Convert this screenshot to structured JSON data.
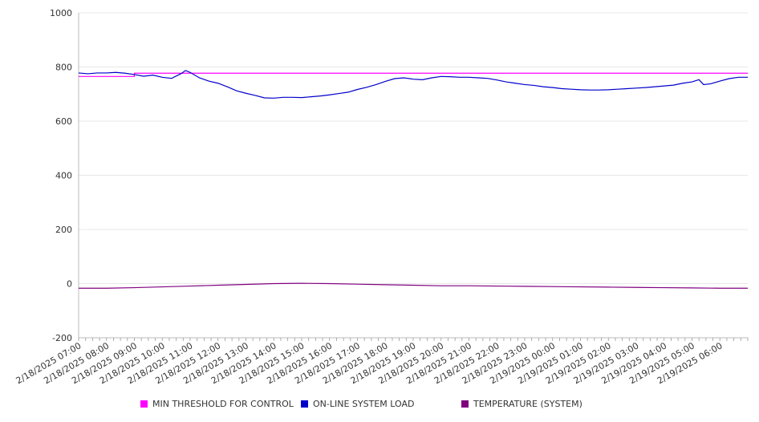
{
  "chart_data": {
    "type": "line",
    "ylim": [
      -200,
      1000
    ],
    "yticks": [
      -200,
      0,
      200,
      400,
      600,
      800,
      1000
    ],
    "x_tick_labels": [
      "2/18/2025 07:00",
      "2/18/2025 08:00",
      "2/18/2025 09:00",
      "2/18/2025 10:00",
      "2/18/2025 11:00",
      "2/18/2025 12:00",
      "2/18/2025 13:00",
      "2/18/2025 14:00",
      "2/18/2025 15:00",
      "2/18/2025 16:00",
      "2/18/2025 17:00",
      "2/18/2025 18:00",
      "2/18/2025 19:00",
      "2/18/2025 20:00",
      "2/18/2025 21:00",
      "2/18/2025 22:00",
      "2/18/2025 23:00",
      "2/19/2025 00:00",
      "2/19/2025 01:00",
      "2/19/2025 02:00",
      "2/19/2025 03:00",
      "2/19/2025 04:00",
      "2/19/2025 05:00",
      "2/19/2025 06:00"
    ],
    "x_range": [
      "2/18/2025 07:00",
      "2/19/2025 07:00"
    ],
    "grid": true,
    "legend_position": "bottom",
    "series": [
      {
        "name": "MIN THRESHOLD FOR CONTROL",
        "color": "#ff00ff",
        "points": [
          [
            "2/18/2025 07:00",
            765
          ],
          [
            "2/18/2025 09:00",
            765
          ],
          [
            "2/18/2025 09:00",
            777
          ],
          [
            "2/19/2025 07:00",
            777
          ]
        ]
      },
      {
        "name": "ON-LINE SYSTEM LOAD",
        "color": "#0000cc",
        "points": [
          [
            "2/18/2025 07:00",
            778
          ],
          [
            "2/18/2025 07:20",
            775
          ],
          [
            "2/18/2025 07:40",
            778
          ],
          [
            "2/18/2025 08:00",
            778
          ],
          [
            "2/18/2025 08:20",
            780
          ],
          [
            "2/18/2025 08:40",
            777
          ],
          [
            "2/18/2025 09:00",
            772
          ],
          [
            "2/18/2025 09:20",
            766
          ],
          [
            "2/18/2025 09:40",
            770
          ],
          [
            "2/18/2025 10:00",
            762
          ],
          [
            "2/18/2025 10:20",
            758
          ],
          [
            "2/18/2025 10:40",
            775
          ],
          [
            "2/18/2025 10:50",
            787
          ],
          [
            "2/18/2025 11:00",
            780
          ],
          [
            "2/18/2025 11:20",
            760
          ],
          [
            "2/18/2025 11:40",
            748
          ],
          [
            "2/18/2025 12:00",
            740
          ],
          [
            "2/18/2025 12:20",
            727
          ],
          [
            "2/18/2025 12:40",
            712
          ],
          [
            "2/18/2025 13:00",
            703
          ],
          [
            "2/18/2025 13:20",
            695
          ],
          [
            "2/18/2025 13:40",
            686
          ],
          [
            "2/18/2025 14:00",
            685
          ],
          [
            "2/18/2025 14:20",
            688
          ],
          [
            "2/18/2025 14:40",
            688
          ],
          [
            "2/18/2025 15:00",
            687
          ],
          [
            "2/18/2025 15:20",
            690
          ],
          [
            "2/18/2025 15:40",
            693
          ],
          [
            "2/18/2025 16:00",
            697
          ],
          [
            "2/18/2025 16:20",
            702
          ],
          [
            "2/18/2025 16:40",
            707
          ],
          [
            "2/18/2025 17:00",
            717
          ],
          [
            "2/18/2025 17:20",
            725
          ],
          [
            "2/18/2025 17:40",
            735
          ],
          [
            "2/18/2025 18:00",
            747
          ],
          [
            "2/18/2025 18:20",
            757
          ],
          [
            "2/18/2025 18:40",
            760
          ],
          [
            "2/18/2025 19:00",
            755
          ],
          [
            "2/18/2025 19:20",
            753
          ],
          [
            "2/18/2025 19:40",
            760
          ],
          [
            "2/18/2025 20:00",
            765
          ],
          [
            "2/18/2025 20:20",
            764
          ],
          [
            "2/18/2025 20:40",
            762
          ],
          [
            "2/18/2025 21:00",
            762
          ],
          [
            "2/18/2025 21:20",
            760
          ],
          [
            "2/18/2025 21:40",
            758
          ],
          [
            "2/18/2025 22:00",
            752
          ],
          [
            "2/18/2025 22:20",
            745
          ],
          [
            "2/18/2025 22:40",
            740
          ],
          [
            "2/18/2025 23:00",
            735
          ],
          [
            "2/18/2025 23:20",
            732
          ],
          [
            "2/18/2025 23:40",
            727
          ],
          [
            "2/19/2025 00:00",
            724
          ],
          [
            "2/19/2025 00:20",
            720
          ],
          [
            "2/19/2025 00:40",
            718
          ],
          [
            "2/19/2025 01:00",
            716
          ],
          [
            "2/19/2025 01:20",
            715
          ],
          [
            "2/19/2025 01:40",
            715
          ],
          [
            "2/19/2025 02:00",
            716
          ],
          [
            "2/19/2025 02:20",
            718
          ],
          [
            "2/19/2025 02:40",
            720
          ],
          [
            "2/19/2025 03:00",
            722
          ],
          [
            "2/19/2025 03:20",
            724
          ],
          [
            "2/19/2025 03:40",
            727
          ],
          [
            "2/19/2025 04:00",
            730
          ],
          [
            "2/19/2025 04:20",
            733
          ],
          [
            "2/19/2025 04:40",
            740
          ],
          [
            "2/19/2025 05:00",
            745
          ],
          [
            "2/19/2025 05:15",
            753
          ],
          [
            "2/19/2025 05:25",
            735
          ],
          [
            "2/19/2025 05:40",
            738
          ],
          [
            "2/19/2025 06:00",
            748
          ],
          [
            "2/19/2025 06:20",
            757
          ],
          [
            "2/19/2025 06:40",
            762
          ],
          [
            "2/19/2025 07:00",
            762
          ]
        ]
      },
      {
        "name": "TEMPERATURE (SYSTEM)",
        "color": "#800080",
        "points": [
          [
            "2/18/2025 07:00",
            -17
          ],
          [
            "2/18/2025 08:00",
            -17
          ],
          [
            "2/18/2025 09:00",
            -15
          ],
          [
            "2/18/2025 10:00",
            -12
          ],
          [
            "2/18/2025 11:00",
            -9
          ],
          [
            "2/18/2025 12:00",
            -6
          ],
          [
            "2/18/2025 13:00",
            -3
          ],
          [
            "2/18/2025 14:00",
            0
          ],
          [
            "2/18/2025 15:00",
            1
          ],
          [
            "2/18/2025 16:00",
            0
          ],
          [
            "2/18/2025 17:00",
            -2
          ],
          [
            "2/18/2025 18:00",
            -4
          ],
          [
            "2/18/2025 19:00",
            -6
          ],
          [
            "2/18/2025 20:00",
            -8
          ],
          [
            "2/18/2025 21:00",
            -8
          ],
          [
            "2/18/2025 22:00",
            -9
          ],
          [
            "2/18/2025 23:00",
            -10
          ],
          [
            "2/19/2025 00:00",
            -11
          ],
          [
            "2/19/2025 01:00",
            -12
          ],
          [
            "2/19/2025 02:00",
            -13
          ],
          [
            "2/19/2025 03:00",
            -14
          ],
          [
            "2/19/2025 04:00",
            -15
          ],
          [
            "2/19/2025 05:00",
            -16
          ],
          [
            "2/19/2025 06:00",
            -17
          ],
          [
            "2/19/2025 07:00",
            -17
          ]
        ]
      }
    ]
  }
}
